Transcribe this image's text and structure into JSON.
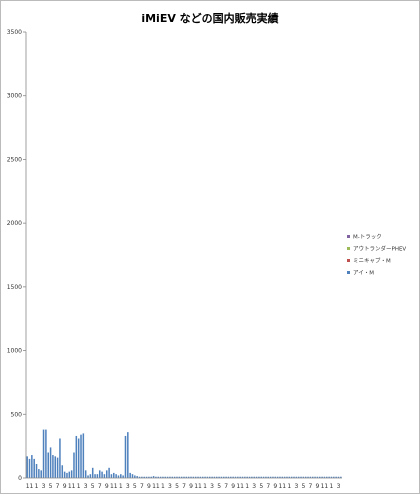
{
  "chart_data": {
    "type": "bar",
    "stacked": true,
    "title": "iMiEV などの国内販売実績",
    "ylim": [
      0,
      3500
    ],
    "yticks": [
      0,
      500,
      1000,
      1500,
      2000,
      2500,
      3000,
      3500
    ],
    "grid": false,
    "legend_position": "right",
    "x_tick_labels": [
      "11",
      "1",
      "3",
      "5",
      "7",
      "9",
      "11",
      "1",
      "3",
      "5",
      "7",
      "9",
      "11",
      "1",
      "3",
      "5",
      "7",
      "9",
      "11",
      "1",
      "3",
      "5",
      "7",
      "9",
      "11",
      "1",
      "3",
      "5",
      "7",
      "9",
      "11",
      "1",
      "3",
      "5",
      "7",
      "9",
      "11",
      "1",
      "3",
      "5",
      "7",
      "9",
      "11",
      "1",
      "3"
    ],
    "series": [
      {
        "name": "アイ・M",
        "color": "#4f81bd",
        "values": [
          170,
          150,
          180,
          150,
          110,
          70,
          60,
          380,
          380,
          200,
          240,
          180,
          170,
          160,
          310,
          100,
          50,
          40,
          50,
          60,
          200,
          330,
          310,
          340,
          350,
          60,
          20,
          30,
          80,
          30,
          30,
          60,
          50,
          30,
          60,
          80,
          30,
          40,
          30,
          20,
          30,
          20,
          330,
          360,
          40,
          30,
          20,
          15,
          10,
          10,
          10,
          10,
          10,
          10,
          15,
          10,
          10,
          10,
          10,
          10,
          10,
          10,
          10,
          10,
          10,
          10,
          10,
          10,
          10,
          10,
          10,
          10,
          10,
          10,
          10,
          10,
          10,
          10,
          10,
          10,
          10,
          10,
          10,
          10,
          10,
          10,
          10,
          10,
          10,
          10,
          10,
          10,
          10,
          10,
          10,
          10,
          10,
          10,
          10,
          10,
          10,
          10,
          10,
          10,
          10,
          10,
          10,
          10,
          10,
          10,
          10,
          10,
          10,
          10,
          10,
          10,
          10,
          10,
          10,
          10,
          10,
          10,
          10,
          10,
          10,
          10,
          10,
          10,
          10,
          10,
          10,
          10,
          10,
          10,
          10
        ]
      },
      {
        "name": "ミニキャブ・M",
        "color": "#c0504d",
        "values": [
          0,
          0,
          0,
          0,
          0,
          0,
          0,
          0,
          0,
          0,
          0,
          0,
          0,
          0,
          0,
          0,
          0,
          0,
          0,
          0,
          0,
          0,
          0,
          0,
          0,
          0,
          0,
          0,
          0,
          0,
          0,
          0,
          0,
          0,
          0,
          0,
          0,
          0,
          0,
          0,
          0,
          0,
          0,
          0,
          0,
          0,
          0,
          0,
          0,
          0,
          0,
          0,
          0,
          0,
          0,
          0,
          0,
          0,
          0,
          0,
          0,
          0,
          0,
          0,
          0,
          0,
          0,
          0,
          0,
          0,
          0,
          0,
          0,
          0,
          0,
          0,
          0,
          0,
          0,
          0,
          0,
          0,
          0,
          0,
          0,
          0,
          0,
          0,
          0,
          0,
          0,
          0,
          0,
          0,
          0,
          0,
          0,
          0,
          0,
          0,
          0,
          0,
          0,
          0,
          0,
          0,
          0,
          0,
          0,
          0,
          0,
          0,
          0,
          0,
          0,
          0,
          0,
          0,
          0,
          0,
          0,
          0,
          0,
          0,
          0,
          0,
          0,
          0,
          0,
          0,
          0,
          0,
          0,
          0,
          0
        ]
      },
      {
        "name": "アウトランダーPHEV",
        "color": "#9bbb59",
        "values": [
          0,
          0,
          0,
          0,
          0,
          0,
          0,
          0,
          0,
          0,
          0,
          0,
          0,
          0,
          0,
          0,
          0,
          0,
          0,
          0,
          0,
          0,
          0,
          0,
          0,
          0,
          0,
          0,
          0,
          0,
          0,
          0,
          0,
          0,
          0,
          0,
          0,
          0,
          0,
          0,
          0,
          0,
          0,
          0,
          0,
          0,
          0,
          0,
          0,
          0,
          0,
          0,
          0,
          0,
          0,
          0,
          0,
          0,
          0,
          0,
          0,
          0,
          0,
          0,
          0,
          0,
          0,
          0,
          0,
          0,
          0,
          0,
          0,
          0,
          0,
          0,
          0,
          0,
          0,
          0,
          0,
          0,
          0,
          0,
          0,
          0,
          0,
          0,
          0,
          0,
          0,
          0,
          0,
          0,
          0,
          0,
          0,
          0,
          0,
          0,
          0,
          0,
          0,
          0,
          0,
          0,
          0,
          0,
          0,
          0,
          0,
          0,
          0,
          0,
          0,
          0,
          0,
          0,
          0,
          0,
          0,
          0,
          0,
          0,
          0,
          0,
          0,
          0,
          0,
          0,
          0,
          0,
          0,
          0,
          0
        ]
      },
      {
        "name": "M-トラック",
        "color": "#8064a2",
        "values": [
          0,
          0,
          0,
          0,
          0,
          0,
          0,
          0,
          0,
          0,
          0,
          0,
          0,
          0,
          0,
          0,
          0,
          0,
          0,
          0,
          0,
          0,
          0,
          0,
          0,
          0,
          0,
          0,
          0,
          0,
          0,
          0,
          0,
          0,
          0,
          0,
          0,
          0,
          0,
          0,
          0,
          0,
          0,
          0,
          0,
          0,
          0,
          0,
          0,
          0,
          0,
          0,
          0,
          0,
          0,
          0,
          0,
          0,
          0,
          0,
          0,
          0,
          0,
          0,
          0,
          0,
          0,
          0,
          0,
          0,
          0,
          0,
          0,
          0,
          0,
          0,
          0,
          0,
          0,
          0,
          0,
          0,
          0,
          0,
          0,
          0,
          0,
          0,
          0,
          0,
          0,
          0,
          0,
          0,
          0,
          0,
          0,
          0,
          0,
          0,
          0,
          0,
          0,
          0,
          0,
          0,
          0,
          0,
          0,
          0,
          0,
          0,
          0,
          0,
          0,
          0,
          0,
          0,
          0,
          0,
          0,
          0,
          0,
          0,
          0,
          0,
          0,
          0,
          0,
          0,
          0,
          0,
          0,
          0,
          0
        ]
      }
    ]
  }
}
